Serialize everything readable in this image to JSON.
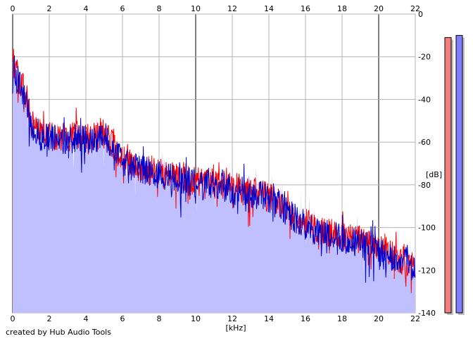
{
  "footer": {
    "credit": "created by Hub Audio Tools"
  },
  "chart_data": {
    "type": "line",
    "title": "",
    "xlabel": "[kHz]",
    "ylabel": "[dB]",
    "xlim": [
      0,
      22
    ],
    "ylim": [
      -140,
      0
    ],
    "x_ticks": [
      0,
      2,
      4,
      6,
      8,
      10,
      12,
      14,
      16,
      18,
      20,
      22
    ],
    "y_ticks": [
      0,
      -20,
      -40,
      -60,
      -80,
      -100,
      -120,
      -140
    ],
    "grid": true,
    "legend": "none",
    "x": [
      0,
      0.25,
      0.5,
      0.75,
      1,
      1.5,
      2,
      2.5,
      3,
      3.5,
      4,
      4.5,
      5,
      5.5,
      6,
      6.5,
      7,
      7.5,
      8,
      8.5,
      9,
      9.5,
      10,
      10.5,
      11,
      11.5,
      12,
      12.5,
      13,
      13.5,
      14,
      14.5,
      15,
      15.5,
      16,
      16.5,
      17,
      17.5,
      18,
      18.5,
      19,
      19.5,
      20,
      20.5,
      21,
      21.5,
      22
    ],
    "series": [
      {
        "color": "#ff0000",
        "values": [
          -22,
          -28,
          -33,
          -38,
          -50,
          -56,
          -57,
          -57,
          -58,
          -57,
          -58,
          -57,
          -56,
          -62,
          -68,
          -70,
          -72,
          -73,
          -74,
          -76,
          -77,
          -77,
          -78,
          -79,
          -79,
          -80,
          -81,
          -82,
          -83,
          -84,
          -86,
          -88,
          -92,
          -95,
          -98,
          -100,
          -102,
          -103,
          -104,
          -105,
          -106,
          -108,
          -110,
          -112,
          -114,
          -116,
          -118
        ]
      },
      {
        "color": "#0000cc",
        "values": [
          -24,
          -30,
          -35,
          -40,
          -52,
          -57,
          -58,
          -58,
          -59,
          -58,
          -59,
          -58,
          -57,
          -63,
          -69,
          -71,
          -73,
          -74,
          -75,
          -77,
          -78,
          -78,
          -79,
          -80,
          -80,
          -81,
          -82,
          -83,
          -84,
          -85,
          -87,
          -89,
          -93,
          -96,
          -99,
          -101,
          -103,
          -104,
          -105,
          -106,
          -107,
          -109,
          -111,
          -113,
          -115,
          -117,
          -119
        ]
      }
    ],
    "fill_color": "#c0c0ff",
    "level_meters": [
      {
        "color": "#f08080",
        "level_db": -11
      },
      {
        "color": "#8080ff",
        "level_db": -10
      }
    ]
  }
}
